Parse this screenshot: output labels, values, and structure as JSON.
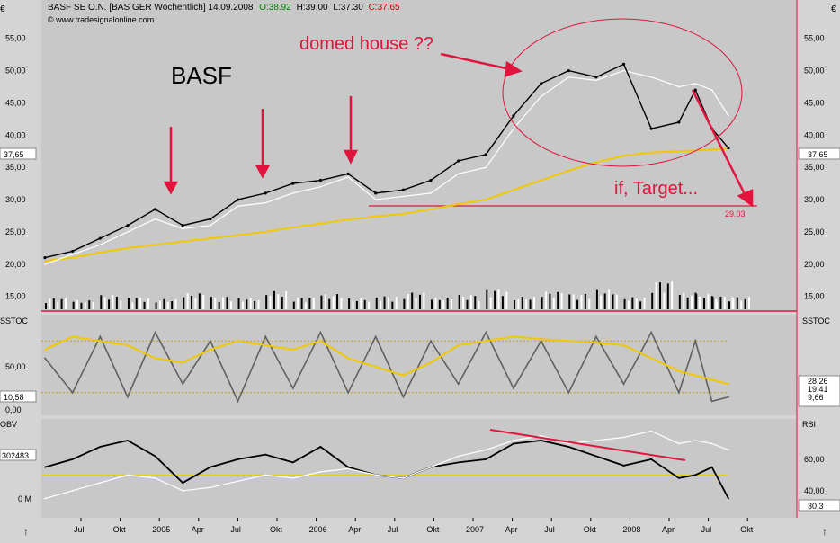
{
  "header": {
    "symbol": "BASF SE O.N. [BAS GER  Wöchentlich] 14.09.2008",
    "open": "O:38.92",
    "high": "H:39.00",
    "low": "L:37.30",
    "close": "C:37.65",
    "copyright": "© www.tradesignalonline.com",
    "currency_left": "€",
    "currency_right": "€"
  },
  "annotations": {
    "label_basf": "BASF",
    "label_domed": "domed house ??",
    "label_target": "if, Target...",
    "target_value": "29.03"
  },
  "panels": {
    "sstoc_left": "SSTOC",
    "sstoc_right": "SSTOC",
    "obv_left": "OBV",
    "rsi_right": "RSI",
    "sstoc_current": "10,58",
    "obv_current": "302483",
    "obv_zero": "0 M",
    "rsi_current": "30,3",
    "price_current": "37,65",
    "sstoc_values_right": [
      "28,26",
      "19,41",
      "9,66"
    ]
  },
  "colors": {
    "price_bars": "#000000",
    "ma_fast": "#ffffff",
    "ma_slow": "#f0c800",
    "annotation_red": "#e0143c",
    "panel_bg": "#c8c8c8",
    "frame_red": "#e0143c"
  },
  "chart_data": [
    {
      "type": "line",
      "name": "price",
      "y_ticks": [
        "15,00",
        "20,00",
        "25,00",
        "30,00",
        "35,00",
        "40,00",
        "45,00",
        "50,00",
        "55,00"
      ],
      "ylim": [
        13,
        59
      ],
      "x_labels": [
        "Jul",
        "Okt",
        "2005",
        "Apr",
        "Jul",
        "Okt",
        "2006",
        "Apr",
        "Jul",
        "Okt",
        "2007",
        "Apr",
        "Jul",
        "Okt",
        "2008",
        "Apr",
        "Jul",
        "Okt"
      ],
      "x": [
        0,
        10,
        20,
        30,
        40,
        50,
        60,
        70,
        80,
        90,
        100,
        110,
        120,
        130,
        140,
        150,
        160,
        170,
        180,
        190,
        200,
        210,
        220,
        230,
        236,
        242,
        248
      ],
      "series": [
        {
          "values": [
            21,
            22,
            24,
            26,
            28.5,
            26,
            27,
            30,
            31,
            32.5,
            33,
            34,
            31,
            31.5,
            33,
            36,
            37,
            43,
            48,
            50,
            49,
            51,
            41,
            42,
            47,
            41,
            38
          ]
        },
        {
          "values": [
            20,
            21.5,
            23,
            25,
            27,
            25.5,
            26,
            29,
            29.5,
            31,
            32,
            33.5,
            30,
            30.5,
            31,
            34,
            35,
            41,
            46,
            49,
            48.5,
            50,
            49,
            47.5,
            48,
            47,
            43
          ]
        },
        {
          "values": [
            20.5,
            21,
            21.8,
            22.5,
            23,
            23.5,
            24,
            24.5,
            25,
            25.7,
            26.3,
            26.9,
            27.4,
            27.8,
            28.5,
            29.3,
            30,
            31.5,
            33,
            34.5,
            35.8,
            36.8,
            37.3,
            37.5,
            37.6,
            37.8,
            37.9
          ]
        }
      ],
      "volume": [
        28,
        22,
        35,
        30,
        25,
        40,
        32,
        28,
        45,
        30,
        38,
        27,
        33,
        42,
        29,
        36,
        50,
        31,
        44,
        39,
        48,
        30,
        70,
        41,
        38,
        33,
        30
      ],
      "support_level": 29.03
    },
    {
      "type": "line",
      "name": "SSTOC",
      "y_ticks": [
        "0,00",
        "50,00"
      ],
      "ylim": [
        0,
        100
      ],
      "series": [
        {
          "values": [
            60,
            20,
            85,
            15,
            90,
            30,
            80,
            10,
            85,
            25,
            90,
            20,
            85,
            15,
            80,
            30,
            90,
            25,
            80,
            20,
            85,
            30,
            90,
            20,
            80,
            10,
            15
          ]
        },
        {
          "values": [
            70,
            85,
            80,
            75,
            60,
            55,
            70,
            80,
            75,
            70,
            80,
            60,
            50,
            40,
            55,
            75,
            80,
            85,
            82,
            80,
            78,
            75,
            60,
            45,
            40,
            35,
            30
          ]
        }
      ]
    },
    {
      "type": "line",
      "name": "OBV / RSI",
      "y_ticks": [
        "40,00",
        "60,00"
      ],
      "ylim": [
        25,
        80
      ],
      "series": [
        {
          "values": [
            55,
            60,
            68,
            72,
            62,
            45,
            55,
            60,
            63,
            58,
            68,
            55,
            50,
            48,
            55,
            58,
            60,
            70,
            72,
            68,
            62,
            56,
            60,
            48,
            50,
            55,
            35
          ]
        },
        {
          "values": [
            35,
            40,
            45,
            50,
            48,
            40,
            42,
            46,
            50,
            48,
            52,
            54,
            50,
            48,
            55,
            62,
            66,
            72,
            75,
            70,
            72,
            74,
            78,
            70,
            72,
            70,
            66
          ]
        }
      ]
    }
  ]
}
